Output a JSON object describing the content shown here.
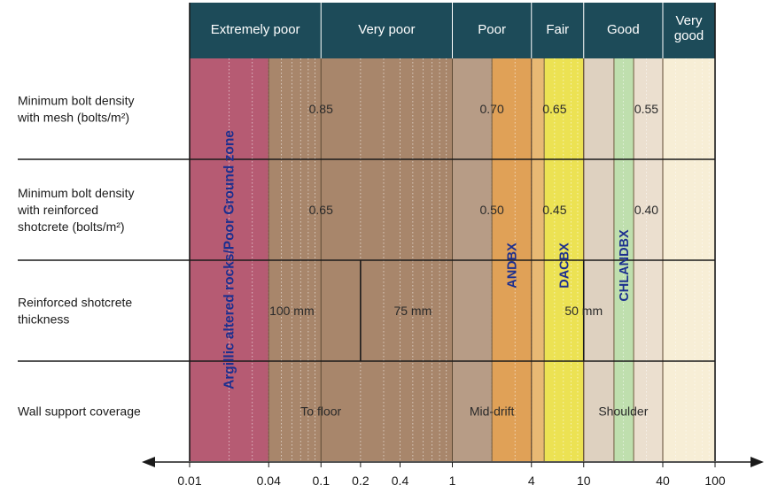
{
  "header": {
    "classes": [
      {
        "label": "Extremely poor",
        "from": 0.01,
        "to": 0.1
      },
      {
        "label": "Very poor",
        "from": 0.1,
        "to": 1
      },
      {
        "label": "Poor",
        "from": 1,
        "to": 4
      },
      {
        "label": "Fair",
        "from": 4,
        "to": 10
      },
      {
        "label": "Good",
        "from": 10,
        "to": 40
      },
      {
        "label": "Very good",
        "lines": [
          "Very",
          "good"
        ],
        "from": 40,
        "to": 100
      }
    ],
    "color": "#1d4b59",
    "text_color": "#ffffff"
  },
  "rows": [
    {
      "label_lines": [
        "Minimum bolt density",
        "with mesh (bolts/m²)"
      ],
      "values": [
        {
          "text": "0.85",
          "at": 0.1
        },
        {
          "text": "0.70",
          "at": 2
        },
        {
          "text": "0.65",
          "at": 6
        },
        {
          "text": "0.55",
          "at": 30
        }
      ]
    },
    {
      "label_lines": [
        "Minimum bolt density",
        "with reinforced",
        "shotcrete (bolts/m²)"
      ],
      "values": [
        {
          "text": "0.65",
          "at": 0.1
        },
        {
          "text": "0.50",
          "at": 2
        },
        {
          "text": "0.45",
          "at": 6
        },
        {
          "text": "0.40",
          "at": 30
        }
      ]
    },
    {
      "label_lines": [
        "Reinforced shotcrete",
        "thickness"
      ],
      "values": [
        {
          "text": "100 mm",
          "at": 0.06
        },
        {
          "text": "75 mm",
          "at": 0.5
        },
        {
          "text": "50 mm",
          "at": 10
        }
      ]
    },
    {
      "label_lines": [
        "Wall support coverage"
      ],
      "values": [
        {
          "text": "To floor",
          "at": 0.1
        },
        {
          "text": "Mid-drift",
          "at": 2
        },
        {
          "text": "Shoulder",
          "at": 20
        }
      ]
    }
  ],
  "bands": [
    {
      "name": "Argillic altered rocks/Poor Ground zone",
      "from": 0.01,
      "to": 0.04,
      "color": "#b65b73",
      "label_color": "#1c2f8f"
    },
    {
      "name": "ANDBX",
      "from": 2,
      "to": 4,
      "color": "#e0a157",
      "label_color": "#1c2f8f"
    },
    {
      "name": "DACBX",
      "from": 5,
      "to": 10,
      "color": "#ece253",
      "label_color": "#1c2f8f"
    },
    {
      "name": "CHLANDBX",
      "from": 17,
      "to": 24,
      "color": "#bfdfae",
      "label_color": "#1c2f8f"
    }
  ],
  "background_zones": [
    {
      "from": 0.04,
      "to": 1,
      "color": "#a8866b"
    },
    {
      "from": 1,
      "to": 2,
      "color": "#b79c86"
    },
    {
      "from": 4,
      "to": 5,
      "color": "#e8b974"
    },
    {
      "from": 10,
      "to": 17,
      "color": "#ded1c0"
    },
    {
      "from": 24,
      "to": 40,
      "color": "#ebdfcf"
    },
    {
      "from": 40,
      "to": 100,
      "color": "#f7eed6"
    }
  ],
  "row_dividers_q": [
    0.2,
    10
  ],
  "axis": {
    "scale": "log",
    "min": 0.01,
    "max": 100,
    "ticks": [
      {
        "v": 0.01,
        "label": "0.01"
      },
      {
        "v": 0.04,
        "label": "0.04"
      },
      {
        "v": 0.1,
        "label": "0.1"
      },
      {
        "v": 0.2,
        "label": "0.2"
      },
      {
        "v": 0.4,
        "label": "0.4"
      },
      {
        "v": 1,
        "label": "1"
      },
      {
        "v": 4,
        "label": "4"
      },
      {
        "v": 10,
        "label": "10"
      },
      {
        "v": 40,
        "label": "40"
      },
      {
        "v": 100,
        "label": "100"
      }
    ]
  }
}
